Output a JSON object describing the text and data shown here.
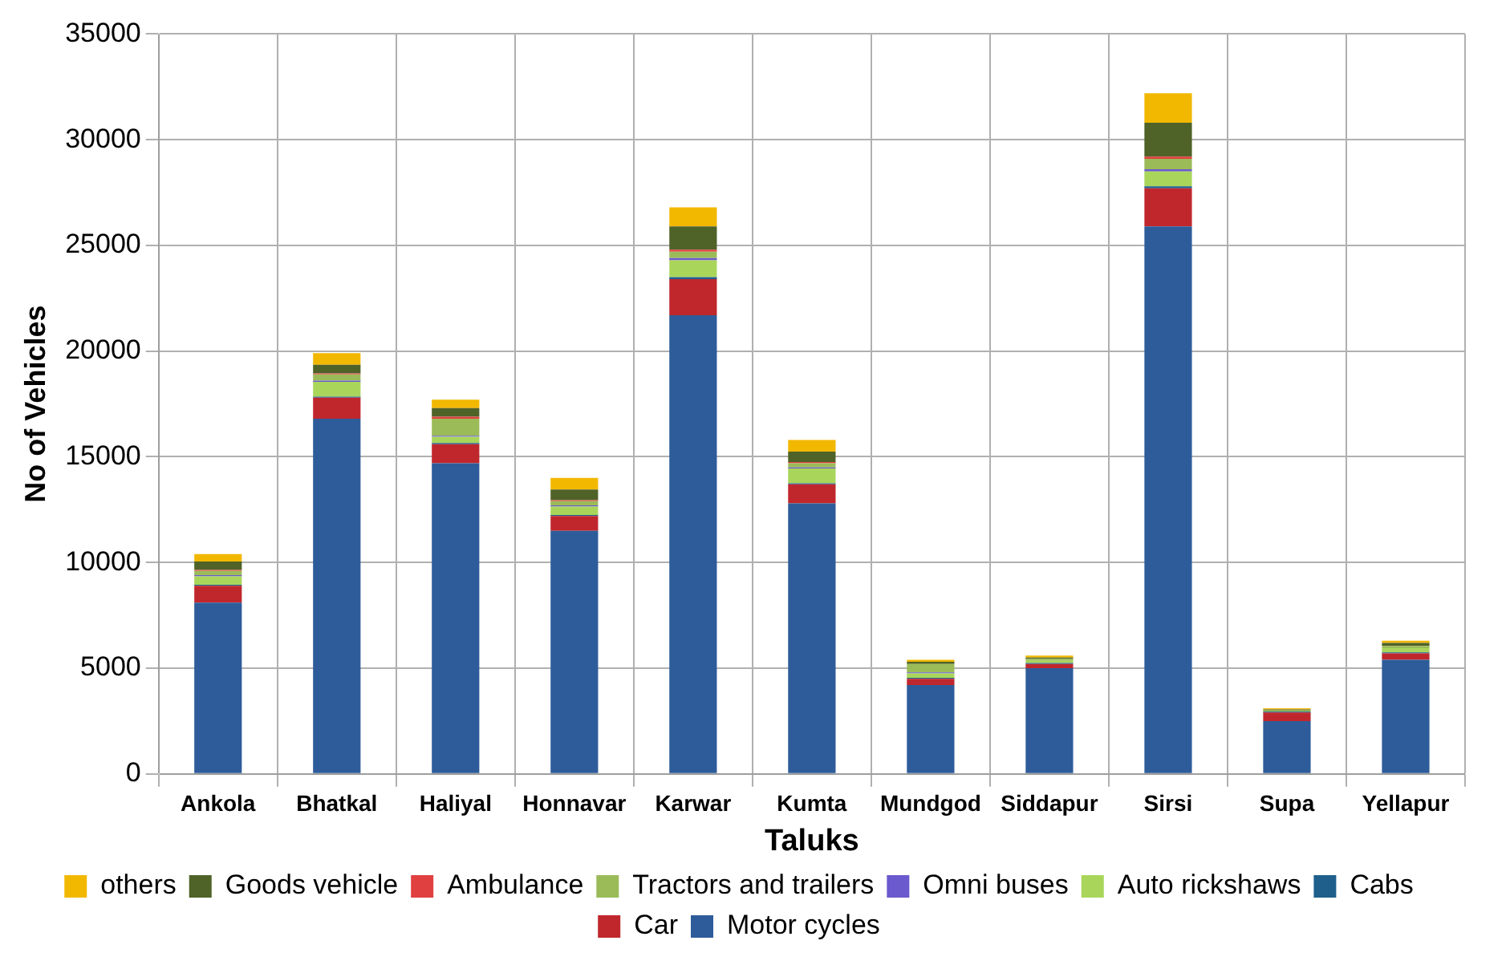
{
  "chart_data": {
    "type": "bar",
    "stacked": true,
    "xlabel": "Taluks",
    "ylabel": "No of Vehicles",
    "categories": [
      "Ankola",
      "Bhatkal",
      "Haliyal",
      "Honnavar",
      "Karwar",
      "Kumta",
      "Mundgod",
      "Siddapur",
      "Sirsi",
      "Supa",
      "Yellapur"
    ],
    "series": [
      {
        "name": "Motor cycles",
        "color": "#2e5c9a",
        "values": [
          8100,
          16800,
          14700,
          11500,
          21700,
          12800,
          4200,
          5000,
          25900,
          2500,
          5400
        ]
      },
      {
        "name": "Car",
        "color": "#c0272d",
        "values": [
          800,
          1000,
          900,
          700,
          1700,
          900,
          300,
          200,
          1800,
          400,
          300
        ]
      },
      {
        "name": "Cabs",
        "color": "#1f5f8b",
        "values": [
          50,
          50,
          50,
          50,
          100,
          50,
          50,
          50,
          100,
          50,
          50
        ]
      },
      {
        "name": "Auto rickshaws",
        "color": "#a9d65a",
        "values": [
          400,
          700,
          300,
          400,
          800,
          700,
          200,
          100,
          700,
          50,
          200
        ]
      },
      {
        "name": "Omni buses",
        "color": "#6a5acd",
        "values": [
          50,
          50,
          50,
          50,
          100,
          50,
          50,
          0,
          100,
          0,
          0
        ]
      },
      {
        "name": "Tractors and trailers",
        "color": "#9bbb59",
        "values": [
          200,
          300,
          800,
          200,
          300,
          200,
          400,
          100,
          500,
          0,
          100
        ]
      },
      {
        "name": "Ambulance",
        "color": "#e04040",
        "values": [
          50,
          50,
          100,
          50,
          100,
          50,
          0,
          0,
          100,
          0,
          0
        ]
      },
      {
        "name": "Goods vehicle",
        "color": "#4f6228",
        "values": [
          400,
          400,
          400,
          500,
          1100,
          500,
          100,
          50,
          1600,
          50,
          150
        ]
      },
      {
        "name": "others",
        "color": "#f2b800",
        "values": [
          350,
          550,
          400,
          550,
          900,
          550,
          100,
          100,
          1400,
          50,
          100
        ]
      }
    ],
    "ylim": [
      0,
      35000
    ],
    "yticks": [
      0,
      5000,
      10000,
      15000,
      20000,
      25000,
      30000,
      35000
    ],
    "grid": true,
    "legend": "bottom"
  }
}
